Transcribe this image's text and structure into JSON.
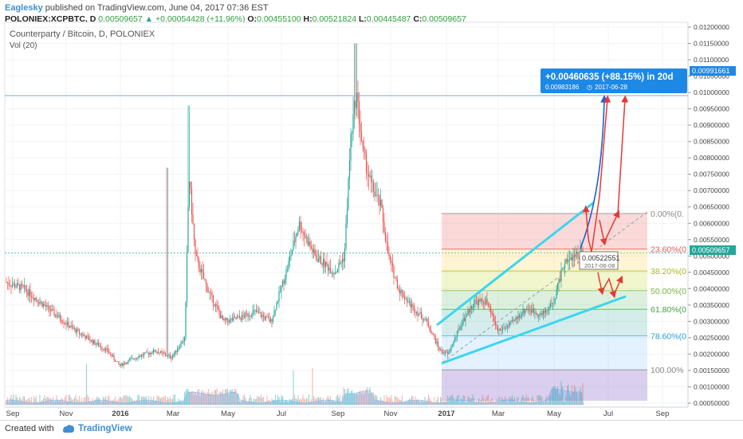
{
  "header": {
    "author": "Eaglesky",
    "published": "published on TradingView.com, June 04, 2017 07:36 EST",
    "symbol": "POLONIEX:XCPBTC, D",
    "last": "0.00509657",
    "change": "+0.00054428 (+11.96%)",
    "o_label": "O:",
    "o": "0.00455100",
    "h_label": "H:",
    "h": "0.00521824",
    "l_label": "L:",
    "l": "0.00445487",
    "c_label": "C:",
    "c": "0.00509657"
  },
  "legend": {
    "title": "Counterparty / Bitcoin, D, POLONIEX",
    "vol": "Vol (20)"
  },
  "footer": {
    "created": "Created with",
    "brand": "TradingView"
  },
  "colors": {
    "up": "#26a69a",
    "down": "#ef5350",
    "accent": "#1e88e5",
    "wedge": "#3ad6ee",
    "arrow": "#e53935"
  },
  "chart_data": {
    "type": "candlestick",
    "y_ticks": [
      "0.01200000",
      "0.01150000",
      "0.01100000",
      "0.01050000",
      "0.01000000",
      "0.00950000",
      "0.00900000",
      "0.00850000",
      "0.00800000",
      "0.00750000",
      "0.00700000",
      "0.00650000",
      "0.00600000",
      "0.00550000",
      "0.00500000",
      "0.00450000",
      "0.00400000",
      "0.00350000",
      "0.00300000",
      "0.00250000",
      "0.00200000",
      "0.00150000",
      "0.00100000",
      "0.00050000"
    ],
    "ylim": [
      0.0003,
      0.0122
    ],
    "x_ticks": [
      "Sep",
      "Nov",
      "2016",
      "Mar",
      "May",
      "Jul",
      "Sep",
      "Nov",
      "2017",
      "Mar",
      "May",
      "Jul",
      "Sep"
    ],
    "price_labels": {
      "top": "0.00991661",
      "current": "0.00509657"
    },
    "fib_levels": [
      {
        "label": "0.00%(0.",
        "value": 0.0063
      },
      {
        "label": "23.60%(0",
        "value": 0.00521
      },
      {
        "label": "38.20%(0",
        "value": 0.00454
      },
      {
        "label": "50.00%(0",
        "value": 0.00394
      },
      {
        "label": "61.80%(0",
        "value": 0.00337
      },
      {
        "label": "78.60%(0",
        "value": 0.00256
      },
      {
        "label": "100.00%",
        "value": 0.00152
      }
    ],
    "projection": {
      "line1": "+0.00460635 (+88.15%) in 20d",
      "price": "0.00983186",
      "date": "2017-06-28"
    },
    "marker": {
      "price": "0.00522551",
      "date": "2017-06-08"
    }
  }
}
